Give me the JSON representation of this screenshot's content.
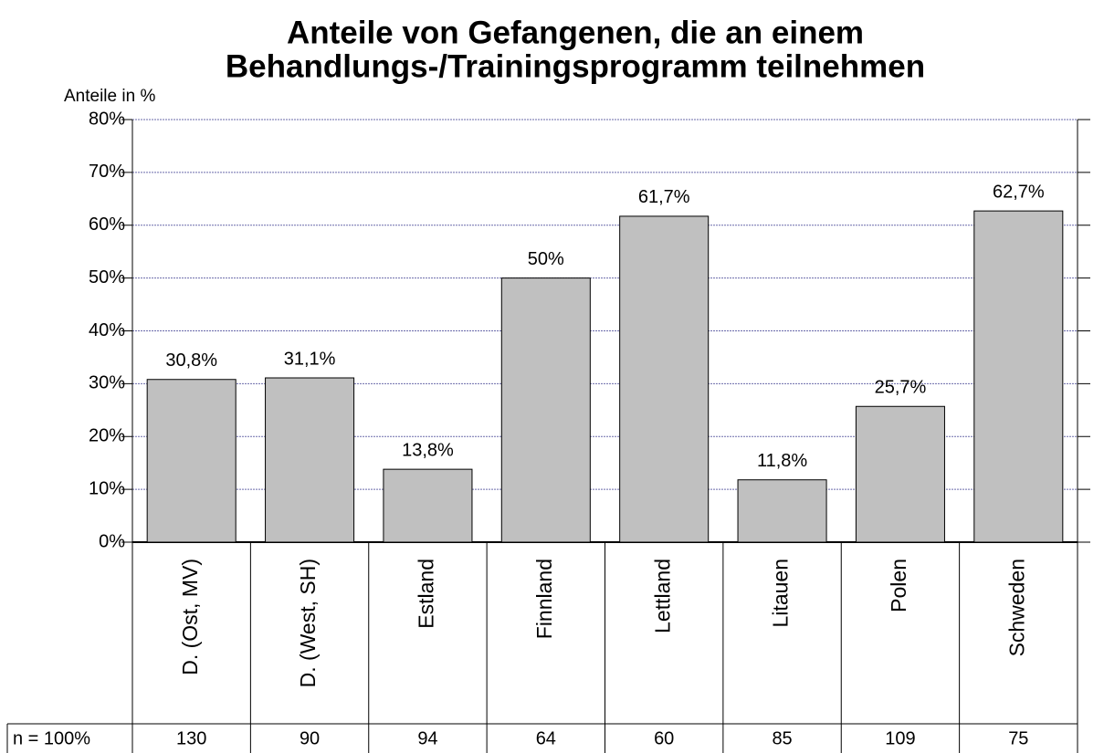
{
  "chart_data": {
    "type": "bar",
    "title_lines": [
      "Anteile von Gefangenen, die an einem",
      "Behandlungs-/Trainingsprogramm teilnehmen"
    ],
    "y_label": "Anteile in %",
    "categories": [
      "D. (Ost, MV)",
      "D. (West, SH)",
      "Estland",
      "Finnland",
      "Lettland",
      "Litauen",
      "Polen",
      "Schweden"
    ],
    "values": [
      30.8,
      31.1,
      13.8,
      50,
      61.7,
      11.8,
      25.7,
      62.7
    ],
    "value_labels": [
      "30,8%",
      "31,1%",
      "13,8%",
      "50%",
      "61,7%",
      "11,8%",
      "25,7%",
      "62,7%"
    ],
    "color": "#c0c0c0",
    "ylim": [
      0,
      80
    ],
    "yticks": [
      {
        "value": 0,
        "label": "0%"
      },
      {
        "value": 10,
        "label": "10%"
      },
      {
        "value": 20,
        "label": "20%"
      },
      {
        "value": 30,
        "label": "30%"
      },
      {
        "value": 40,
        "label": "40%"
      },
      {
        "value": 50,
        "label": "50%"
      },
      {
        "value": 60,
        "label": "60%"
      },
      {
        "value": 70,
        "label": "70%"
      },
      {
        "value": 80,
        "label": "80%"
      }
    ],
    "grid": true,
    "n_label": "n = 100%",
    "n_values": [
      130,
      90,
      94,
      64,
      60,
      85,
      109,
      75
    ]
  }
}
